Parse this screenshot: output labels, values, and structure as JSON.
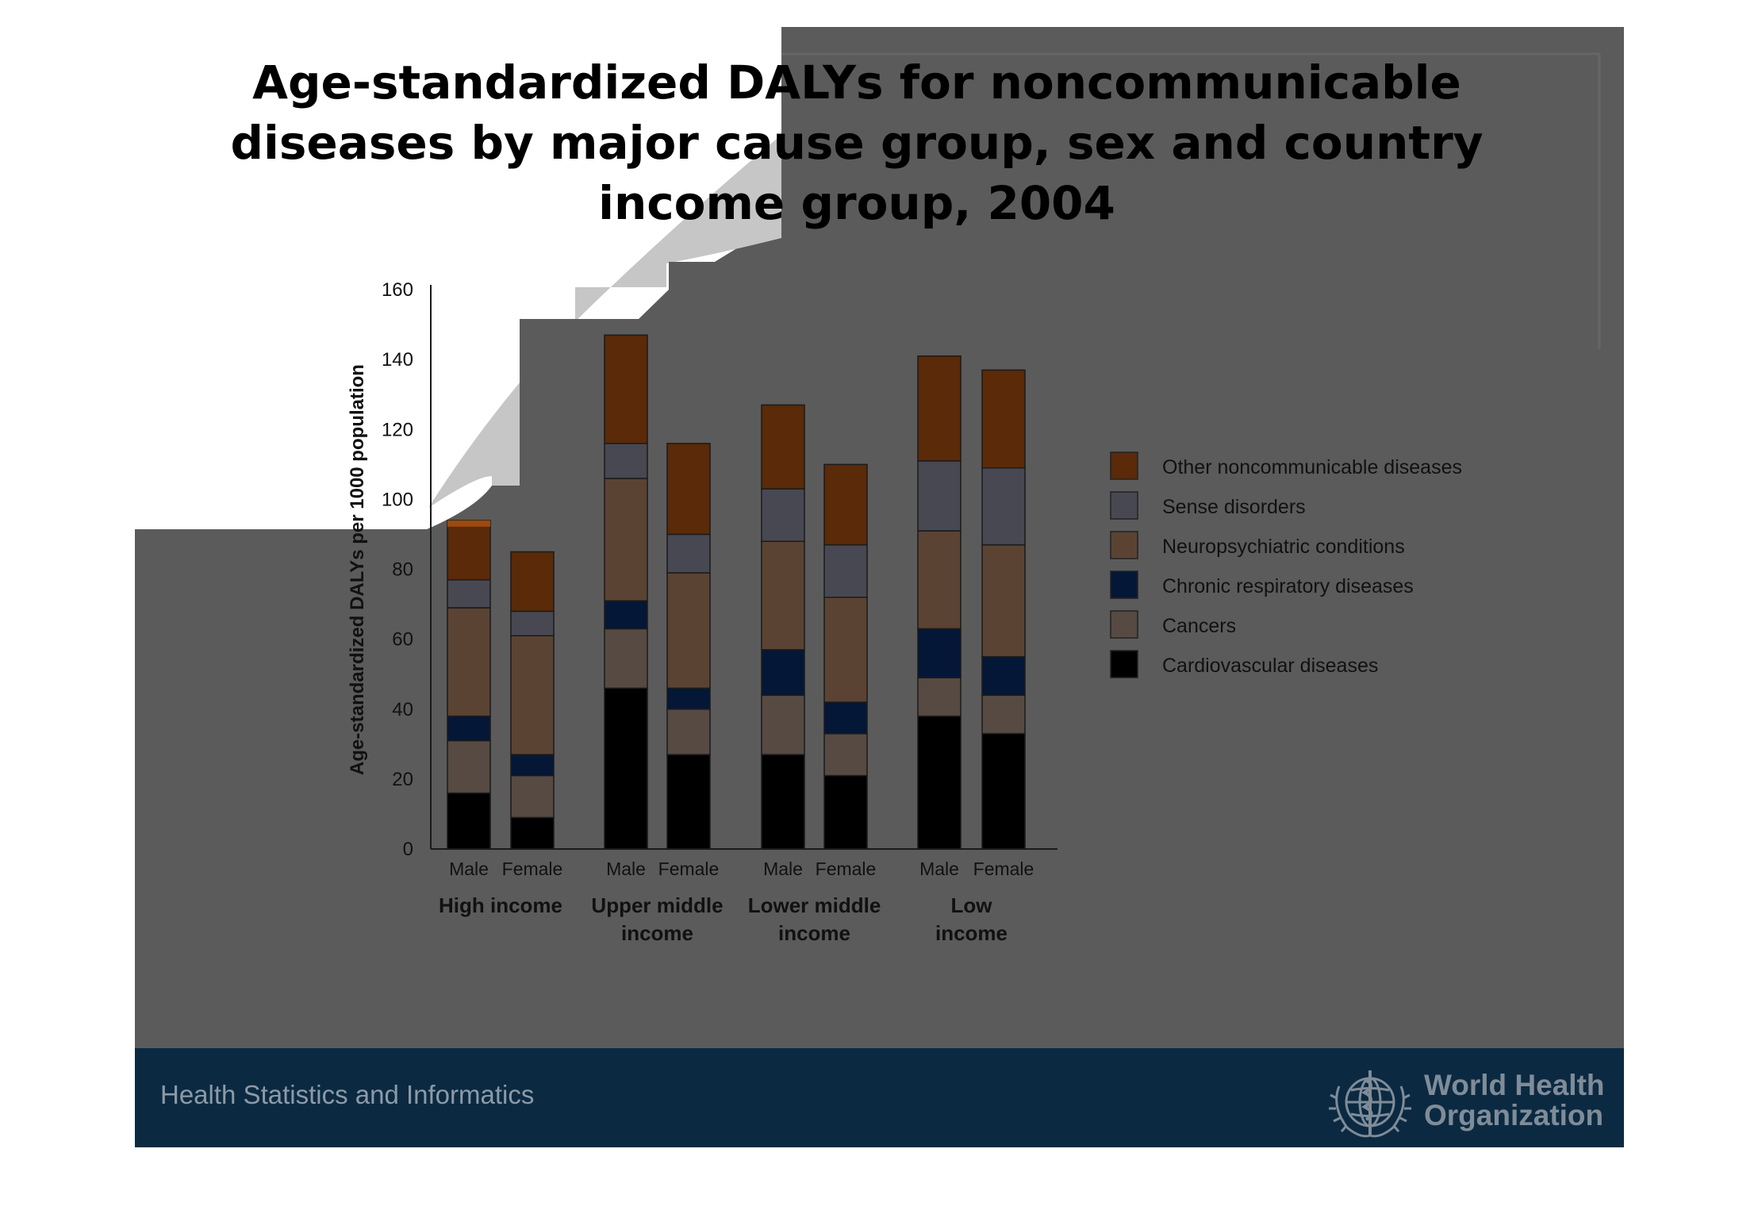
{
  "page": {
    "title_lines": [
      "Age-standardized DALYs for noncommunicable",
      "diseases by major cause group,  sex and country",
      "income group, 2004"
    ]
  },
  "footer": {
    "label": "Health Statistics and Informatics",
    "org_name_lines": [
      "World Health",
      "Organization"
    ],
    "emblem_icon": "who-emblem-icon"
  },
  "colors": {
    "slide_gray": "#5b5b5b",
    "footer_navy": "#0b2a42",
    "cardiovascular": "#000000",
    "cancers": "#564a42",
    "chronic_respiratory": "#051736",
    "neuropsychiatric": "#5b4333",
    "sense_disorders": "#484853",
    "other_ncd": "#5b2a08",
    "other_ncd_highlight": "#9c4a0f"
  },
  "chart_data": {
    "type": "bar",
    "stacked": true,
    "title": "",
    "ylabel": "Age-standardized DALYs per 1000 population",
    "xlabel": "",
    "ylim": [
      0,
      160
    ],
    "yticks": [
      0,
      20,
      40,
      60,
      80,
      100,
      120,
      140,
      160
    ],
    "grid": false,
    "legend_position": "right",
    "groups": [
      {
        "label": "High income",
        "label_lines": [
          "High income"
        ]
      },
      {
        "label": "Upper middle income",
        "label_lines": [
          "Upper middle",
          "income"
        ]
      },
      {
        "label": "Lower middle income",
        "label_lines": [
          "Lower middle",
          "income"
        ]
      },
      {
        "label": "Low income",
        "label_lines": [
          "Low",
          "income"
        ]
      }
    ],
    "categories": [
      "Male",
      "Female",
      "Male",
      "Female",
      "Male",
      "Female",
      "Male",
      "Female"
    ],
    "series": [
      {
        "name": "Cardiovascular diseases",
        "color": "#000000",
        "values": [
          16,
          9,
          46,
          27,
          27,
          21,
          38,
          33
        ]
      },
      {
        "name": "Cancers",
        "color": "#564a42",
        "values": [
          15,
          12,
          17,
          13,
          17,
          12,
          11,
          11
        ]
      },
      {
        "name": "Chronic respiratory diseases",
        "color": "#051736",
        "values": [
          7,
          6,
          8,
          6,
          13,
          9,
          14,
          11
        ]
      },
      {
        "name": "Neuropsychiatric conditions",
        "color": "#5b4333",
        "values": [
          31,
          34,
          35,
          33,
          31,
          30,
          28,
          32
        ]
      },
      {
        "name": "Sense disorders",
        "color": "#484853",
        "values": [
          8,
          7,
          10,
          11,
          15,
          15,
          20,
          22
        ]
      },
      {
        "name": "Other noncommunicable diseases",
        "color": "#5b2a08",
        "values": [
          17,
          17,
          31,
          26,
          24,
          23,
          30,
          28
        ]
      }
    ]
  }
}
